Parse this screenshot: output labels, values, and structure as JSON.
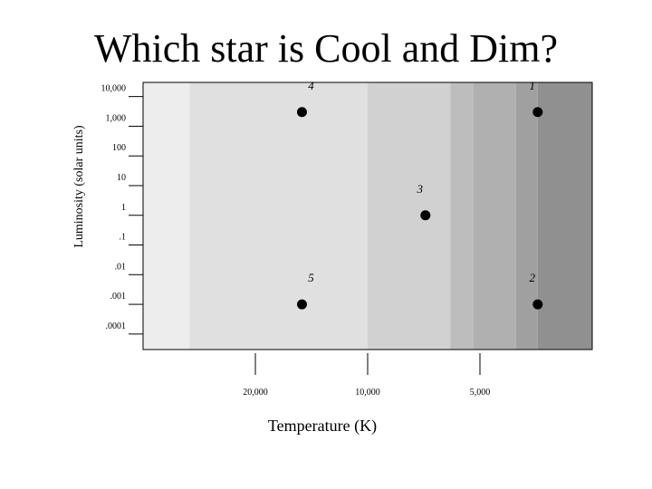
{
  "title": "Which star is Cool and Dim?",
  "chart_data": {
    "type": "scatter",
    "title": "Which star is Cool and Dim?",
    "xlabel": "Temperature (K)",
    "ylabel": "Luminosity (solar units)",
    "x_scale": "log",
    "x_direction": "decreasing",
    "y_scale": "log",
    "xlim": [
      40000,
      2500
    ],
    "ylim": [
      3e-05,
      30000
    ],
    "x_ticks": [
      {
        "value": 20000,
        "label": "20,000"
      },
      {
        "value": 10000,
        "label": "10,000"
      },
      {
        "value": 5000,
        "label": "5,000"
      }
    ],
    "y_ticks": [
      {
        "value": 10000,
        "label": "10,000"
      },
      {
        "value": 1000,
        "label": "1,000"
      },
      {
        "value": 100,
        "label": "100"
      },
      {
        "value": 10,
        "label": "10"
      },
      {
        "value": 1,
        "label": "1"
      },
      {
        "value": 0.1,
        "label": ".1"
      },
      {
        "value": 0.01,
        "label": ".01"
      },
      {
        "value": 0.001,
        "label": ".001"
      },
      {
        "value": 0.0001,
        "label": ".0001"
      }
    ],
    "grid": false,
    "legend": "none",
    "background_bands": [
      {
        "from": 40000,
        "to": 30000,
        "color": "#ededed"
      },
      {
        "from": 30000,
        "to": 10000,
        "color": "#e0e0e0"
      },
      {
        "from": 10000,
        "to": 6000,
        "color": "#d1d1d1"
      },
      {
        "from": 6000,
        "to": 5200,
        "color": "#bdbdbd"
      },
      {
        "from": 5200,
        "to": 4000,
        "color": "#b0b0b0"
      },
      {
        "from": 4000,
        "to": 3500,
        "color": "#a0a0a0"
      },
      {
        "from": 3500,
        "to": 2500,
        "color": "#909090"
      }
    ],
    "points": [
      {
        "label": "1",
        "x": 3500,
        "y": 3000
      },
      {
        "label": "2",
        "x": 3500,
        "y": 0.001
      },
      {
        "label": "3",
        "x": 7000,
        "y": 1
      },
      {
        "label": "4",
        "x": 15000,
        "y": 3000
      },
      {
        "label": "5",
        "x": 15000,
        "y": 0.001
      }
    ],
    "marker_color": "#000000"
  }
}
